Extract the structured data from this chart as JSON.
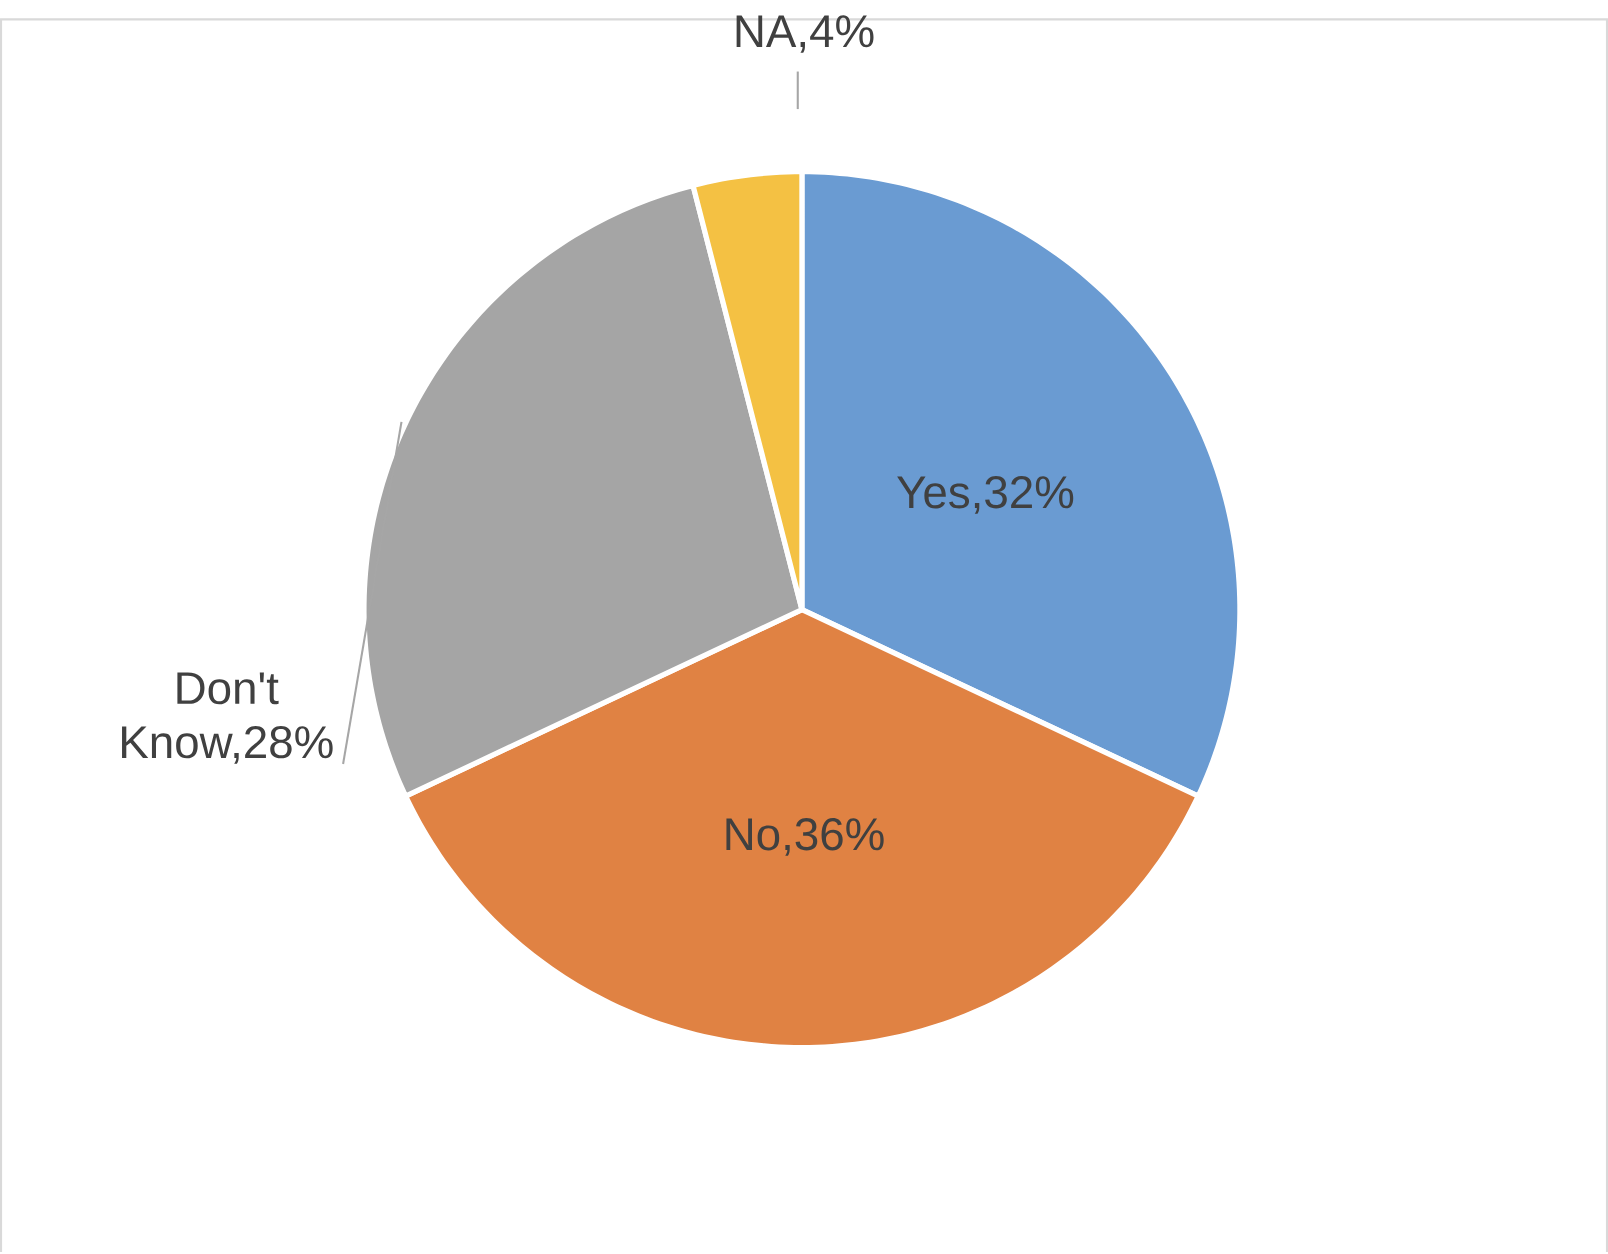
{
  "chart_data": {
    "type": "pie",
    "categories": [
      null,
      null,
      null,
      null
    ],
    "values": [
      32,
      36,
      28,
      4
    ],
    "value_labels": [
      "Yes,32%",
      "No,36%",
      "Don't Know,28%",
      "NA,4%"
    ],
    "colors": [
      "#6a9bd2",
      "#e08243",
      "#a5a5a5",
      "#f4c143"
    ]
  }
}
